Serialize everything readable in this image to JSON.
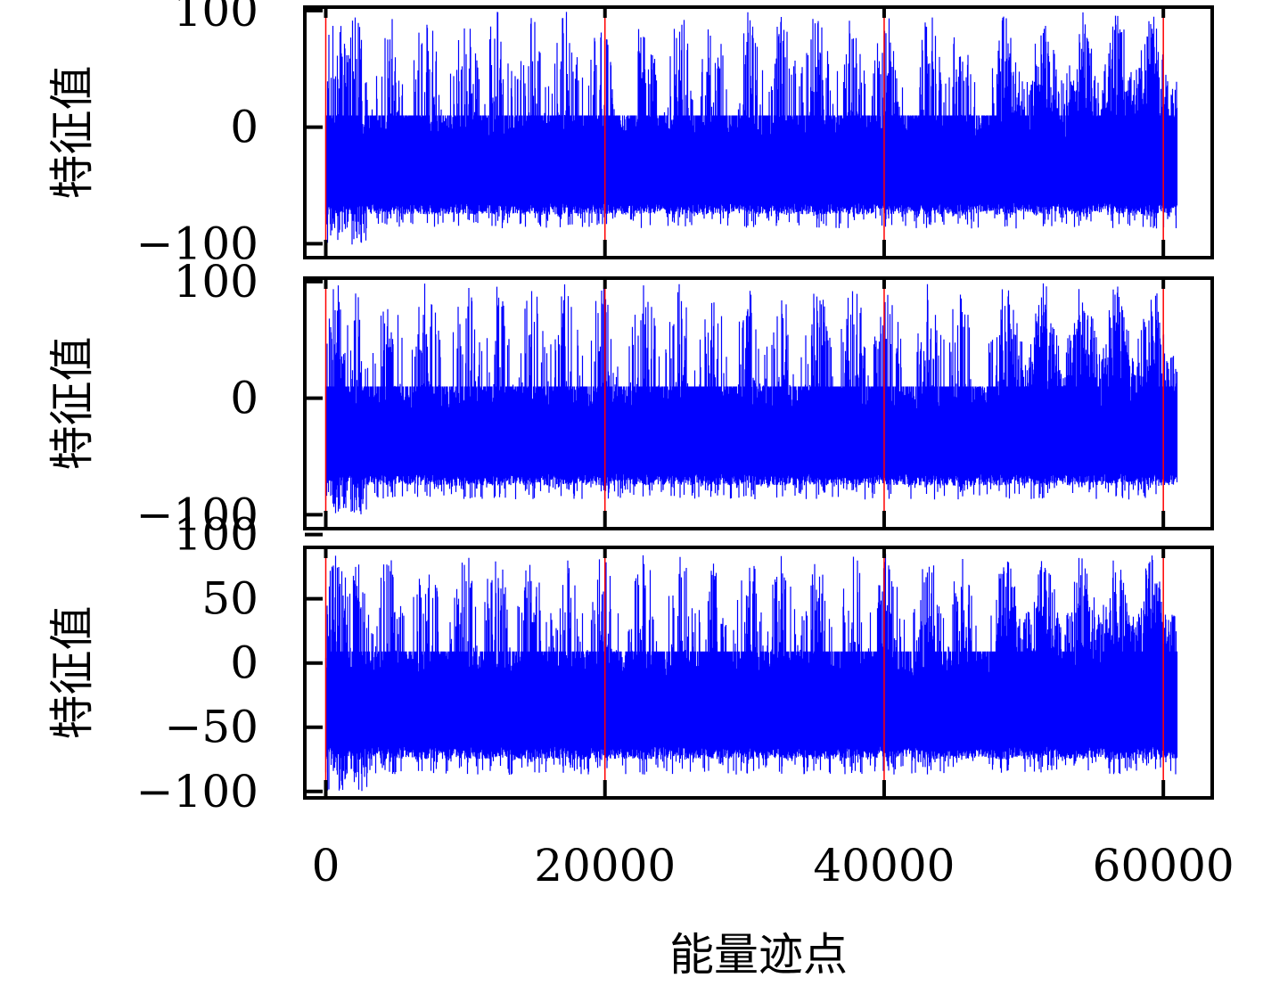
{
  "chart_data": [
    {
      "type": "line",
      "title": "",
      "xlabel": "",
      "ylabel": "特征值",
      "xlim": [
        -1500,
        63500
      ],
      "ylim": [
        -112,
        103
      ],
      "xticks": [
        0,
        20000,
        40000,
        60000
      ],
      "yticks": [
        -100,
        0,
        100
      ],
      "ytick_labels": [
        "−100",
        "0",
        "100"
      ],
      "grid": false,
      "n_points": 61000,
      "series": [
        {
          "color": "#0000ff",
          "envelope": {
            "baseline_low": -75,
            "baseline_high": 10,
            "burst_peak_max": 100,
            "burst_trough_min": -101
          },
          "burst_centers": [
            700,
            2000,
            4500,
            7200,
            10000,
            12200,
            14800,
            17200,
            19800,
            22800,
            25400,
            27700,
            30300,
            32700,
            35200,
            37800,
            40200,
            43200,
            45400,
            48700,
            51500,
            54200,
            56700,
            59200
          ]
        }
      ],
      "vlines": {
        "x": [
          0,
          20000,
          40000,
          60000
        ],
        "color": "#ff0000"
      }
    },
    {
      "type": "line",
      "title": "",
      "xlabel": "",
      "ylabel": "特征值",
      "xlim": [
        -1500,
        63500
      ],
      "ylim": [
        -112,
        103
      ],
      "xticks": [
        0,
        20000,
        40000,
        60000
      ],
      "yticks": [
        -100,
        0,
        100
      ],
      "ytick_labels": [
        "−100",
        "0",
        "100"
      ],
      "grid": false,
      "n_points": 61000,
      "series": [
        {
          "color": "#0000ff",
          "envelope": {
            "baseline_low": -75,
            "baseline_high": 10,
            "burst_peak_max": 100,
            "burst_trough_min": -100
          },
          "burst_centers": [
            700,
            2000,
            4500,
            7200,
            10000,
            12200,
            14800,
            17200,
            19800,
            22800,
            25400,
            27700,
            30300,
            32700,
            35200,
            37800,
            40200,
            43200,
            45400,
            48700,
            51500,
            54200,
            56700,
            59200
          ]
        }
      ],
      "vlines": {
        "x": [
          0,
          20000,
          40000,
          60000
        ],
        "color": "#ff0000"
      }
    },
    {
      "type": "line",
      "title": "",
      "xlabel": "能量迹点",
      "ylabel": "特征值",
      "xlim": [
        -1500,
        63500
      ],
      "ylim": [
        -105,
        90
      ],
      "xticks": [
        0,
        20000,
        40000,
        60000
      ],
      "xtick_labels": [
        "0",
        "20000",
        "40000",
        "60000"
      ],
      "yticks": [
        -100,
        -50,
        0,
        50,
        100
      ],
      "ytick_labels": [
        "−100",
        "−50",
        "0",
        "50",
        "100"
      ],
      "grid": false,
      "n_points": 61000,
      "series": [
        {
          "color": "#0000ff",
          "envelope": {
            "baseline_low": -75,
            "baseline_high": 9,
            "burst_peak_max": 86,
            "burst_trough_min": -100
          },
          "burst_centers": [
            700,
            2000,
            4500,
            7200,
            10000,
            12200,
            14800,
            17200,
            19800,
            22800,
            25400,
            27700,
            30300,
            32700,
            35200,
            37800,
            40200,
            43200,
            45400,
            48700,
            51500,
            54200,
            56700,
            59200
          ]
        }
      ],
      "vlines": {
        "x": [
          0,
          20000,
          40000,
          60000
        ],
        "color": "#ff0000"
      }
    }
  ]
}
